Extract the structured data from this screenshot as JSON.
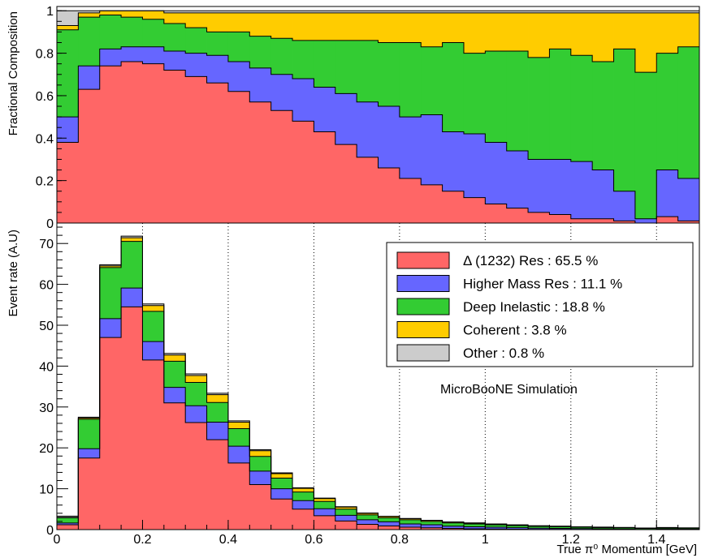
{
  "chart_data": [
    {
      "type": "area",
      "stacked": true,
      "step": true,
      "ylabel": "Fractional Composition",
      "ylim": [
        0,
        1.02
      ],
      "yticks": [
        0,
        0.2,
        0.4,
        0.6,
        0.8,
        1
      ],
      "ytick_labels": [
        "0",
        "0.2",
        "0.4",
        "0.6",
        "0.8",
        "1"
      ],
      "xlim": [
        0,
        1.5
      ],
      "x": [
        0.025,
        0.075,
        0.125,
        0.175,
        0.225,
        0.275,
        0.325,
        0.375,
        0.425,
        0.475,
        0.525,
        0.575,
        0.625,
        0.675,
        0.725,
        0.775,
        0.825,
        0.875,
        0.925,
        0.975,
        1.025,
        1.075,
        1.125,
        1.175,
        1.225,
        1.275,
        1.325,
        1.375,
        1.425,
        1.475
      ],
      "series": [
        {
          "name": "Δ (1232) Res",
          "color": "#ff6666",
          "values": [
            0.38,
            0.63,
            0.74,
            0.76,
            0.75,
            0.72,
            0.69,
            0.66,
            0.62,
            0.57,
            0.53,
            0.48,
            0.43,
            0.37,
            0.31,
            0.26,
            0.21,
            0.18,
            0.15,
            0.12,
            0.09,
            0.07,
            0.05,
            0.04,
            0.02,
            0.02,
            0.01,
            0.0,
            0.03,
            0.01
          ]
        },
        {
          "name": "Higher Mass Res",
          "color": "#6666ff",
          "values": [
            0.12,
            0.11,
            0.08,
            0.07,
            0.08,
            0.09,
            0.11,
            0.13,
            0.14,
            0.16,
            0.17,
            0.2,
            0.21,
            0.24,
            0.26,
            0.29,
            0.29,
            0.33,
            0.28,
            0.3,
            0.29,
            0.27,
            0.25,
            0.26,
            0.27,
            0.23,
            0.14,
            0.02,
            0.22,
            0.2
          ]
        },
        {
          "name": "Deep Inelastic",
          "color": "#33cc33",
          "values": [
            0.41,
            0.23,
            0.16,
            0.14,
            0.13,
            0.13,
            0.12,
            0.11,
            0.14,
            0.15,
            0.17,
            0.18,
            0.22,
            0.25,
            0.29,
            0.3,
            0.35,
            0.32,
            0.42,
            0.38,
            0.43,
            0.47,
            0.48,
            0.52,
            0.5,
            0.51,
            0.67,
            0.69,
            0.55,
            0.62
          ]
        },
        {
          "name": "Coherent",
          "color": "#ffcc00",
          "values": [
            0.02,
            0.02,
            0.02,
            0.03,
            0.04,
            0.05,
            0.07,
            0.09,
            0.09,
            0.11,
            0.12,
            0.13,
            0.13,
            0.13,
            0.13,
            0.14,
            0.14,
            0.16,
            0.14,
            0.19,
            0.18,
            0.18,
            0.21,
            0.17,
            0.2,
            0.23,
            0.17,
            0.28,
            0.19,
            0.16
          ]
        },
        {
          "name": "Other",
          "color": "#cccccc",
          "values": [
            0.07,
            0.01,
            0.0,
            0.0,
            0.0,
            0.01,
            0.01,
            0.01,
            0.01,
            0.01,
            0.01,
            0.01,
            0.01,
            0.01,
            0.01,
            0.01,
            0.01,
            0.01,
            0.01,
            0.01,
            0.01,
            0.01,
            0.01,
            0.01,
            0.01,
            0.01,
            0.01,
            0.01,
            0.01,
            0.01
          ]
        }
      ]
    },
    {
      "type": "bar",
      "stacked": true,
      "histogram": true,
      "ylabel": "Event rate (A.U)",
      "xlabel": "True π⁰ Momentum [GeV]",
      "ylim": [
        0,
        75
      ],
      "yticks": [
        0,
        10,
        20,
        30,
        40,
        50,
        60,
        70
      ],
      "ytick_labels": [
        "0",
        "10",
        "20",
        "30",
        "40",
        "50",
        "60",
        "70"
      ],
      "xlim": [
        0,
        1.5
      ],
      "xticks": [
        0,
        0.2,
        0.4,
        0.6,
        0.8,
        1,
        1.2,
        1.4
      ],
      "xtick_labels": [
        "0",
        "0.2",
        "0.4",
        "0.6",
        "0.8",
        "1",
        "1.2",
        "1.4"
      ],
      "grid": "vertical-dotted",
      "x": [
        0.025,
        0.075,
        0.125,
        0.175,
        0.225,
        0.275,
        0.325,
        0.375,
        0.425,
        0.475,
        0.525,
        0.575,
        0.625,
        0.675,
        0.725,
        0.775,
        0.825,
        0.875,
        0.925,
        0.975,
        1.025,
        1.075,
        1.125,
        1.175,
        1.225,
        1.275,
        1.325,
        1.375,
        1.425,
        1.475
      ],
      "series": [
        {
          "name": "Δ (1232) Res",
          "color": "#ff6666",
          "values": [
            1.2,
            17.5,
            47,
            54.5,
            41.5,
            31,
            26.2,
            22,
            16.3,
            11,
            7.5,
            5,
            3.4,
            2.1,
            1.3,
            0.9,
            0.6,
            0.45,
            0.3,
            0.2,
            0.15,
            0.1,
            0.05,
            0.04,
            0.02,
            0.02,
            0.01,
            0.0,
            0.02,
            0.01
          ]
        },
        {
          "name": "Higher Mass Res",
          "color": "#6666ff",
          "values": [
            0.4,
            2.3,
            4.6,
            4.6,
            4.5,
            3.8,
            4.1,
            4.3,
            4.1,
            3.3,
            2.5,
            2.1,
            1.7,
            1.4,
            1.1,
            1.0,
            0.8,
            0.75,
            0.55,
            0.5,
            0.45,
            0.38,
            0.3,
            0.27,
            0.22,
            0.18,
            0.12,
            0.06,
            0.15,
            0.12
          ]
        },
        {
          "name": "Deep Inelastic",
          "color": "#33cc33",
          "values": [
            1.3,
            7.2,
            12.5,
            11.4,
            7.4,
            6.4,
            5.7,
            4.8,
            4.3,
            3.6,
            2.6,
            2.1,
            1.8,
            1.5,
            1.2,
            1.0,
            1.0,
            0.8,
            0.78,
            0.7,
            0.6,
            0.52,
            0.44,
            0.4,
            0.35,
            0.3,
            0.3,
            0.24,
            0.25,
            0.22
          ]
        },
        {
          "name": "Coherent",
          "color": "#ffcc00",
          "values": [
            0.1,
            0.3,
            0.4,
            0.9,
            1.4,
            1.5,
            1.7,
            1.9,
            1.6,
            1.4,
            1.1,
            0.9,
            0.7,
            0.5,
            0.38,
            0.32,
            0.28,
            0.25,
            0.22,
            0.2,
            0.17,
            0.15,
            0.13,
            0.12,
            0.1,
            0.1,
            0.09,
            0.09,
            0.08,
            0.07
          ]
        },
        {
          "name": "Other",
          "color": "#cccccc",
          "values": [
            0.3,
            0.2,
            0.3,
            0.4,
            0.4,
            0.4,
            0.4,
            0.35,
            0.3,
            0.25,
            0.2,
            0.15,
            0.12,
            0.1,
            0.08,
            0.06,
            0.05,
            0.04,
            0.03,
            0.03,
            0.02,
            0.02,
            0.02,
            0.01,
            0.01,
            0.01,
            0.01,
            0.01,
            0.01,
            0.01
          ]
        }
      ],
      "legend": {
        "position": "top-right",
        "entries": [
          {
            "label": "Δ (1232) Res : 65.5 %",
            "color": "#ff6666"
          },
          {
            "label": "Higher Mass Res : 11.1 %",
            "color": "#6666ff"
          },
          {
            "label": "Deep Inelastic : 18.8 %",
            "color": "#33cc33"
          },
          {
            "label": "Coherent : 3.8 %",
            "color": "#ffcc00"
          },
          {
            "label": "Other : 0.8 %",
            "color": "#cccccc"
          }
        ]
      },
      "annotation": "MicroBooNE Simulation"
    }
  ]
}
